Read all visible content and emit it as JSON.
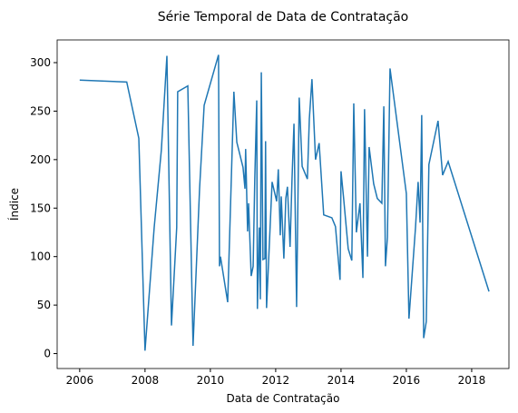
{
  "chart_data": {
    "type": "line",
    "title": "Série Temporal de Data de Contratação",
    "xlabel": "Data de Contratação",
    "ylabel": "Índice",
    "xlim": [
      2005.31,
      2019.14
    ],
    "ylim": [
      -15.4,
      323.4
    ],
    "xticks": [
      2006,
      2008,
      2010,
      2012,
      2014,
      2016,
      2018
    ],
    "yticks": [
      0,
      50,
      100,
      150,
      200,
      250,
      300
    ],
    "series": [
      {
        "color": "#1f77b4",
        "x": [
          2006.0,
          2007.44,
          2007.81,
          2008.0,
          2008.28,
          2008.5,
          2008.67,
          2008.81,
          2008.97,
          2009.0,
          2009.31,
          2009.47,
          2009.67,
          2009.81,
          2010.25,
          2010.28,
          2010.31,
          2010.53,
          2010.72,
          2010.81,
          2011.0,
          2011.06,
          2011.08,
          2011.14,
          2011.17,
          2011.25,
          2011.31,
          2011.36,
          2011.42,
          2011.44,
          2011.5,
          2011.53,
          2011.56,
          2011.61,
          2011.67,
          2011.69,
          2011.72,
          2011.89,
          2012.03,
          2012.08,
          2012.14,
          2012.17,
          2012.25,
          2012.31,
          2012.36,
          2012.44,
          2012.5,
          2012.56,
          2012.64,
          2012.72,
          2012.81,
          2012.97,
          2013.03,
          2013.11,
          2013.22,
          2013.33,
          2013.47,
          2013.72,
          2013.83,
          2013.97,
          2014.0,
          2014.08,
          2014.22,
          2014.33,
          2014.39,
          2014.47,
          2014.58,
          2014.67,
          2014.72,
          2014.81,
          2014.86,
          2015.0,
          2015.11,
          2015.25,
          2015.31,
          2015.36,
          2015.42,
          2015.5,
          2016.0,
          2016.08,
          2016.28,
          2016.36,
          2016.42,
          2016.47,
          2016.53,
          2016.61,
          2016.69,
          2016.97,
          2017.11,
          2017.28,
          2018.53
        ],
        "values": [
          282,
          280,
          222,
          3,
          130,
          210,
          307,
          29,
          130,
          270,
          276,
          8,
          170,
          256,
          308,
          90,
          100,
          53,
          270,
          218,
          192,
          170,
          211,
          126,
          155,
          80,
          90,
          180,
          261,
          46,
          130,
          56,
          290,
          97,
          98,
          219,
          47,
          177,
          157,
          190,
          122,
          162,
          98,
          160,
          172,
          110,
          180,
          237,
          48,
          264,
          193,
          180,
          242,
          283,
          200,
          217,
          143,
          140,
          131,
          76,
          188,
          160,
          108,
          96,
          258,
          125,
          155,
          78,
          252,
          100,
          213,
          175,
          160,
          155,
          255,
          90,
          120,
          294,
          165,
          36,
          130,
          177,
          135,
          246,
          16,
          33,
          195,
          240,
          184,
          198,
          64
        ]
      }
    ]
  }
}
